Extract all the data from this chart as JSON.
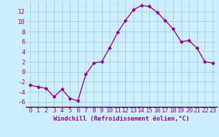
{
  "x": [
    0,
    1,
    2,
    3,
    4,
    5,
    6,
    7,
    8,
    9,
    10,
    11,
    12,
    13,
    14,
    15,
    16,
    17,
    18,
    19,
    20,
    21,
    22,
    23
  ],
  "y": [
    -2.7,
    -3.0,
    -3.3,
    -5.0,
    -3.5,
    -5.3,
    -5.8,
    -0.5,
    1.7,
    2.0,
    4.7,
    7.8,
    10.2,
    12.3,
    13.2,
    13.0,
    11.8,
    10.2,
    8.5,
    6.0,
    6.2,
    4.7,
    2.0,
    1.7
  ],
  "line_color": "#990099",
  "marker": "D",
  "markersize": 2.5,
  "linewidth": 1.0,
  "xlabel": "Windchill (Refroidissement éolien,°C)",
  "xlim": [
    -0.5,
    23.5
  ],
  "ylim": [
    -7,
    14
  ],
  "yticks": [
    -6,
    -4,
    -2,
    0,
    2,
    4,
    6,
    8,
    10,
    12
  ],
  "xticks": [
    0,
    1,
    2,
    3,
    4,
    5,
    6,
    7,
    8,
    9,
    10,
    11,
    12,
    13,
    14,
    15,
    16,
    17,
    18,
    19,
    20,
    21,
    22,
    23
  ],
  "bg_color": "#cceeff",
  "grid_color": "#aacccc",
  "tick_color": "#990099",
  "label_color": "#990099",
  "xlabel_fontsize": 6.5,
  "tick_fontsize": 6.5,
  "figsize": [
    3.2,
    2.0
  ],
  "dpi": 100
}
